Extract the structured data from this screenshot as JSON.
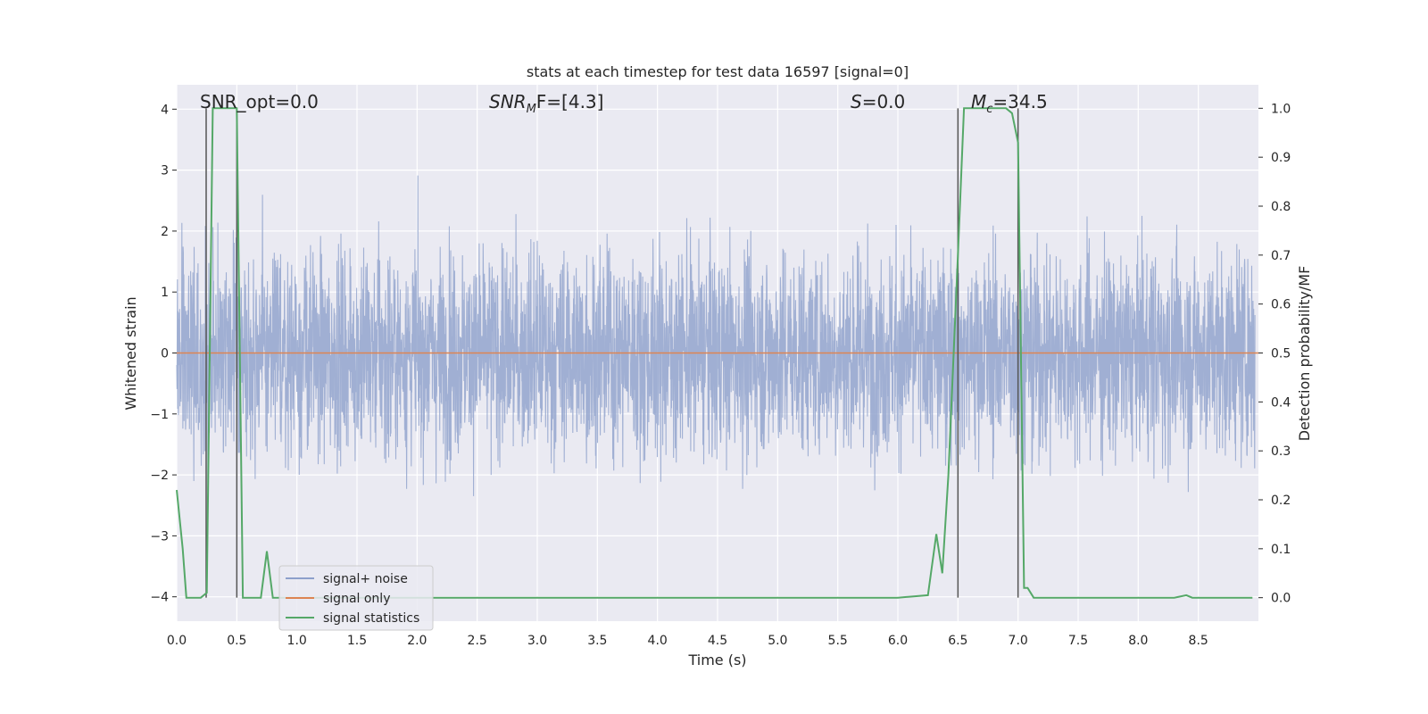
{
  "chart_data": {
    "type": "line",
    "title": "stats at each timestep for test data 16597 [signal=0]",
    "xlabel": "Time (s)",
    "ylabel": "Whitened strain",
    "y2label": "Detection probability/MF",
    "xlim": [
      0.0,
      9.0
    ],
    "ylim": [
      -4.4,
      4.4
    ],
    "y2lim": [
      -0.048,
      1.048
    ],
    "xticks": [
      0.0,
      0.5,
      1.0,
      1.5,
      2.0,
      2.5,
      3.0,
      3.5,
      4.0,
      4.5,
      5.0,
      5.5,
      6.0,
      6.5,
      7.0,
      7.5,
      8.0,
      8.5
    ],
    "xtick_labels": [
      "0.0",
      "0.5",
      "1.0",
      "1.5",
      "2.0",
      "2.5",
      "3.0",
      "3.5",
      "4.0",
      "4.5",
      "5.0",
      "5.5",
      "6.0",
      "6.5",
      "7.0",
      "7.5",
      "8.0",
      "8.5"
    ],
    "yticks": [
      -4,
      -3,
      -2,
      -1,
      0,
      1,
      2,
      3,
      4
    ],
    "ytick_labels": [
      "−4",
      "−3",
      "−2",
      "−1",
      "0",
      "1",
      "2",
      "3",
      "4"
    ],
    "y2ticks": [
      0.0,
      0.1,
      0.2,
      0.3,
      0.4,
      0.5,
      0.6,
      0.7,
      0.8,
      0.9,
      1.0
    ],
    "y2tick_labels": [
      "0.0",
      "0.1",
      "0.2",
      "0.3",
      "0.4",
      "0.5",
      "0.6",
      "0.7",
      "0.8",
      "0.9",
      "1.0"
    ],
    "grid": true,
    "legend_position": "lower-left",
    "series": [
      {
        "name": "signal+ noise",
        "color": "#8da0cb",
        "kind": "dense-noise",
        "approx_std": 0.9,
        "approx_range": [
          -3.9,
          4.0
        ]
      },
      {
        "name": "signal only",
        "color": "#dd8452",
        "x": [
          0.0,
          9.0
        ],
        "y": [
          0.0,
          0.0
        ]
      },
      {
        "name": "signal statistics",
        "color": "#55a868",
        "axis": "right",
        "x": [
          0.0,
          0.05,
          0.08,
          0.15,
          0.2,
          0.25,
          0.3,
          0.35,
          0.4,
          0.45,
          0.5,
          0.55,
          0.6,
          0.7,
          0.75,
          0.8,
          0.9,
          1.0,
          2.0,
          3.0,
          4.0,
          5.0,
          6.0,
          6.25,
          6.32,
          6.37,
          6.42,
          6.5,
          6.55,
          6.6,
          6.7,
          6.8,
          6.9,
          6.95,
          7.0,
          7.05,
          7.08,
          7.13,
          7.5,
          8.0,
          8.3,
          8.4,
          8.45,
          8.5,
          8.7,
          8.95
        ],
        "y": [
          0.22,
          0.1,
          0.0,
          0.0,
          0.0,
          0.01,
          1.0,
          1.0,
          1.0,
          1.0,
          1.0,
          0.0,
          0.0,
          0.0,
          0.095,
          0.0,
          0.0,
          0.0,
          0.0,
          0.0,
          0.0,
          0.0,
          0.0,
          0.005,
          0.13,
          0.05,
          0.25,
          0.7,
          1.0,
          1.0,
          1.0,
          1.0,
          1.0,
          0.99,
          0.93,
          0.02,
          0.02,
          0.0,
          0.0,
          0.0,
          0.0,
          0.005,
          0.0,
          0.0,
          0.0,
          0.0
        ]
      }
    ],
    "vertical_lines_x": [
      0.245,
      0.5,
      6.5,
      7.0
    ],
    "annotations": [
      {
        "text": "SNR_opt=0.0",
        "x": 0.2
      },
      {
        "text": "SNR",
        "sub": "M",
        "after": "F=[4.3]",
        "x": 2.6
      },
      {
        "text": "S",
        "after": "=0.0",
        "x": 5.6
      },
      {
        "text": "M",
        "sub": "c",
        "after": "=34.5",
        "x": 6.6
      }
    ]
  }
}
